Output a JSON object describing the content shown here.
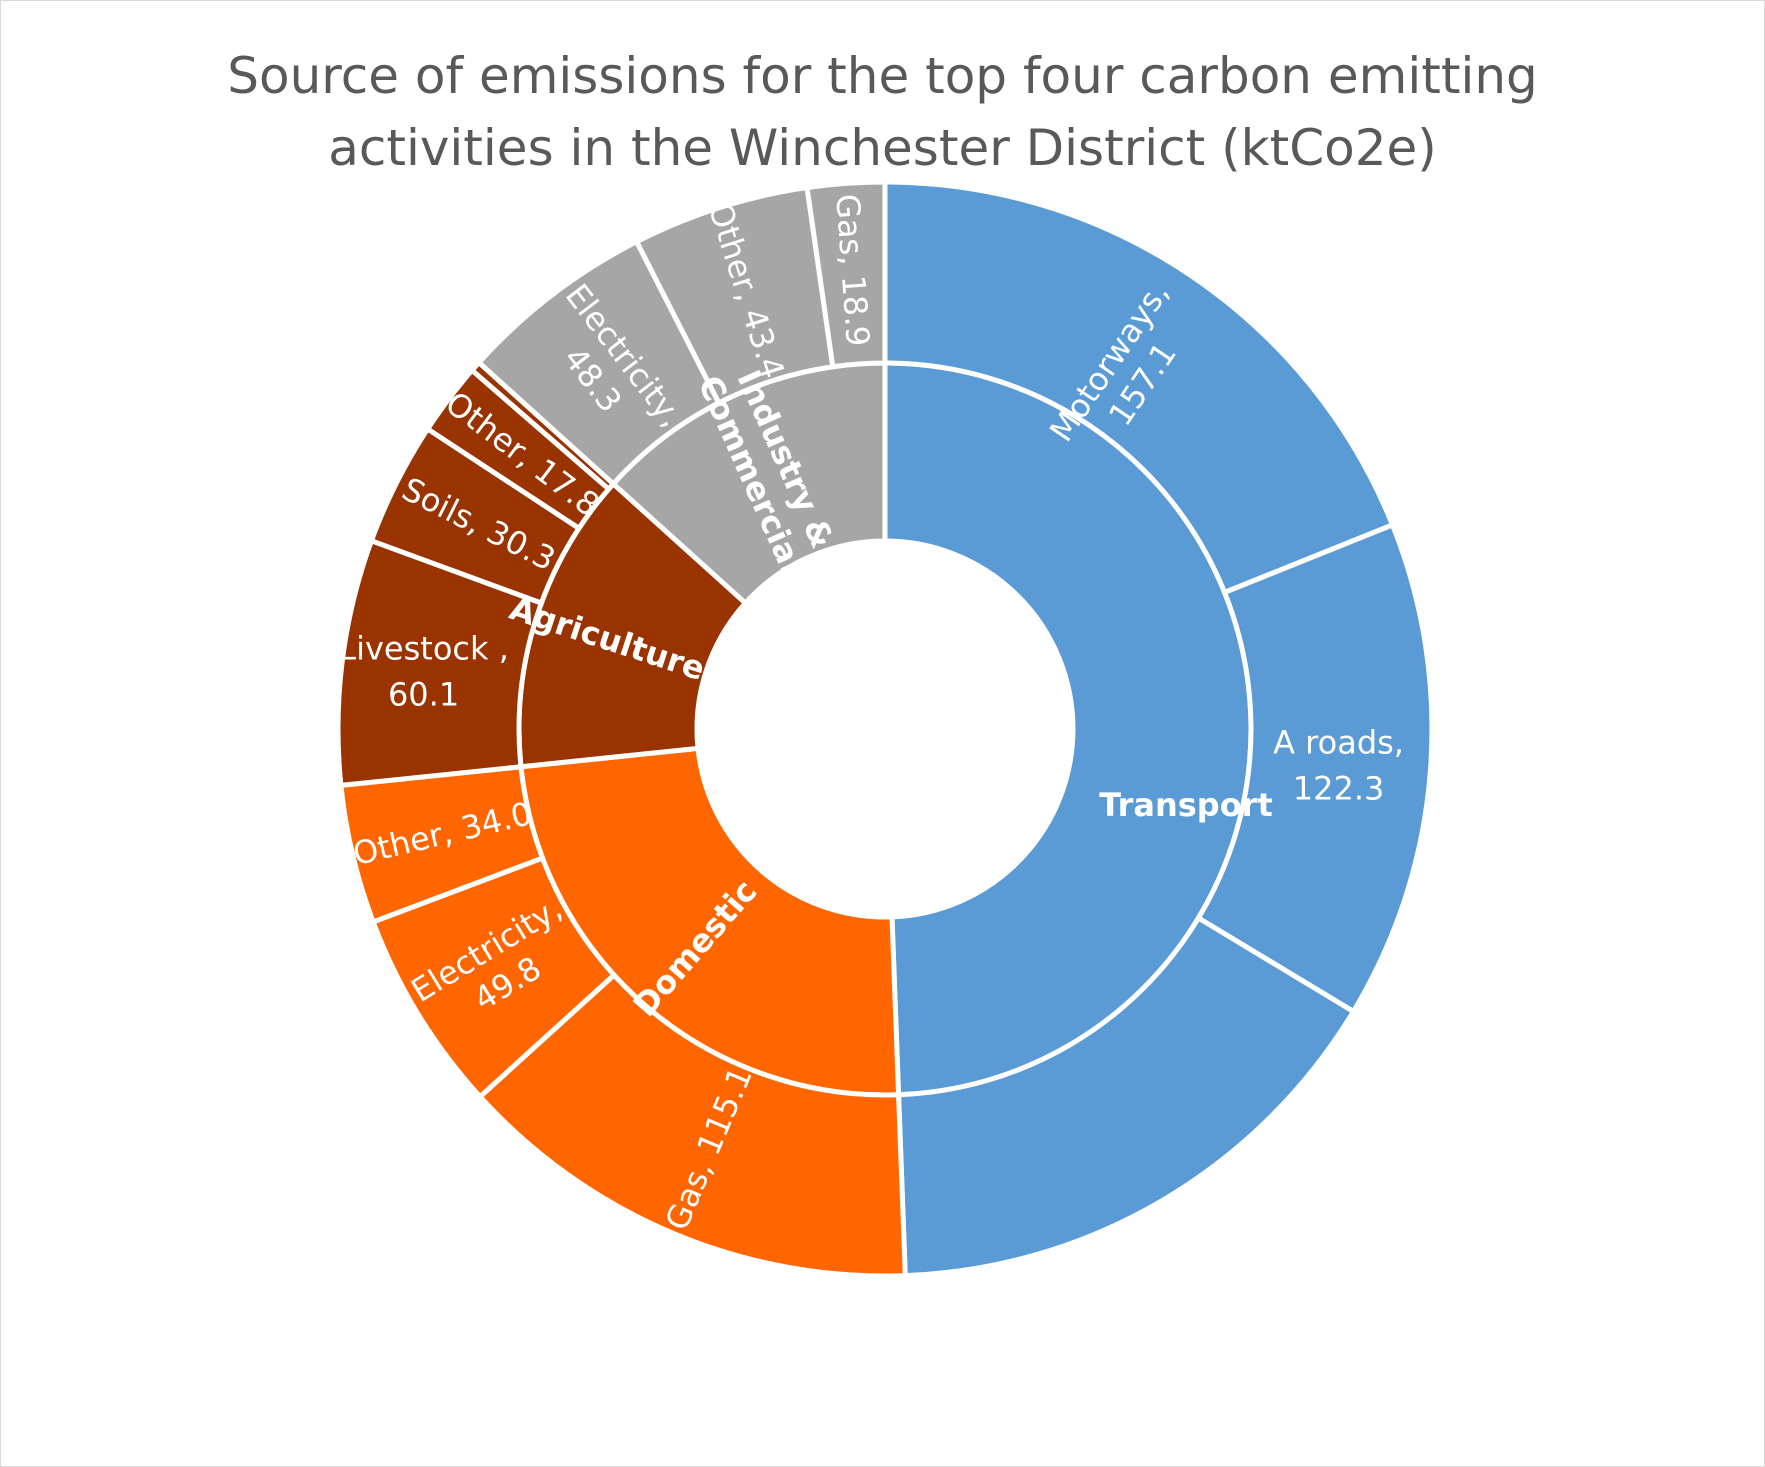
{
  "chart_data": {
    "type": "sunburst",
    "title_lines": [
      "Source of emissions for the top four carbon emitting",
      "activities in the Winchester District (ktCo2e)"
    ],
    "colors": {
      "Transport": "#5b9bd5",
      "Domestic": "#ff6600",
      "Agriculture": "#993300",
      "Industry & Commercial": "#a6a6a6",
      "separator": "#ffffff"
    },
    "categories": [
      {
        "name": "Transport",
        "label_lines": [
          "Transport"
        ],
        "segments": [
          {
            "name": "Motorways",
            "value": 157.1,
            "label_lines": [
              "Motorways,",
              "157.1"
            ]
          },
          {
            "name": "A roads",
            "value": 122.3,
            "label_lines": [
              "A roads,",
              "122.3"
            ]
          },
          {
            "name": "",
            "value": 131.0,
            "label_lines": []
          }
        ]
      },
      {
        "name": "Domestic",
        "label_lines": [
          "Domestic"
        ],
        "segments": [
          {
            "name": "Gas",
            "value": 115.1,
            "label_lines": [
              "Gas, 115.1"
            ]
          },
          {
            "name": "Electricity",
            "value": 49.8,
            "label_lines": [
              "Electricity,",
              "49.8"
            ]
          },
          {
            "name": "Other",
            "value": 34.0,
            "label_lines": [
              "Other, 34.0"
            ]
          }
        ]
      },
      {
        "name": "Agriculture",
        "label_lines": [
          "Agriculture"
        ],
        "segments": [
          {
            "name": "Livestock",
            "value": 60.1,
            "label_lines": [
              "Livestock ,",
              "60.1"
            ]
          },
          {
            "name": "Soils",
            "value": 30.3,
            "label_lines": [
              "Soils, 30.3"
            ]
          },
          {
            "name": "Other",
            "value": 17.8,
            "label_lines": [
              "Other, 17.8"
            ]
          },
          {
            "name": "",
            "value": 2.5,
            "label_lines": []
          }
        ]
      },
      {
        "name": "Industry & Commercial",
        "label_lines": [
          "Industry &",
          "Commercial"
        ],
        "segments": [
          {
            "name": "Electricity",
            "value": 48.3,
            "label_lines": [
              "Electricity,",
              "48.3"
            ]
          },
          {
            "name": "Other",
            "value": 43.4,
            "label_lines": [
              "Other, 43.4"
            ]
          },
          {
            "name": "Gas",
            "value": 18.9,
            "label_lines": [
              "Gas, 18.9"
            ]
          }
        ]
      }
    ]
  }
}
